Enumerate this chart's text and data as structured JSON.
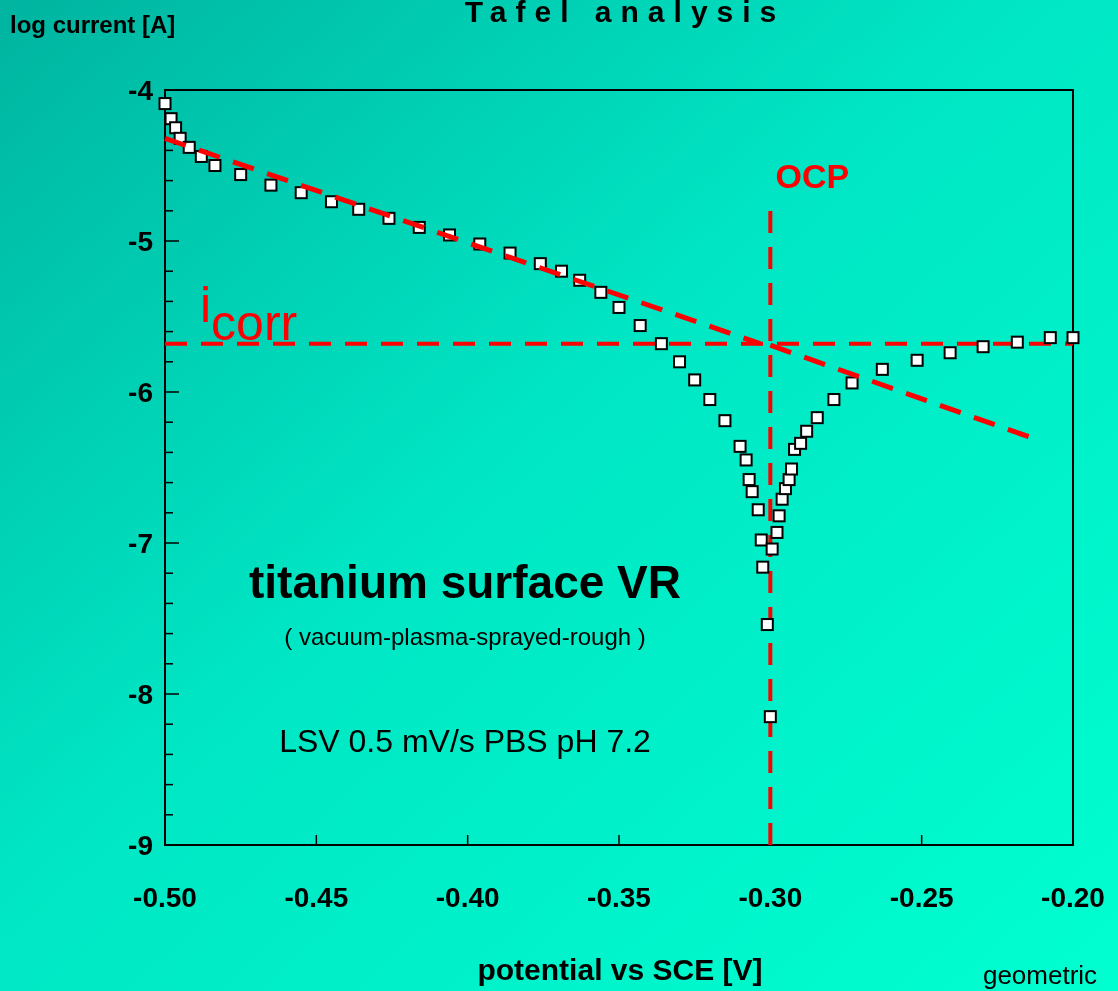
{
  "chart_data": {
    "type": "scatter",
    "title": "Tafel analysis",
    "xlabel": "potential vs SCE [V]",
    "ylabel": "log current [A]",
    "xlim": [
      -0.5,
      -0.2
    ],
    "ylim": [
      -9,
      -4
    ],
    "xticks": [
      {
        "value": -0.5,
        "label": "-0.50"
      },
      {
        "value": -0.45,
        "label": "-0.45"
      },
      {
        "value": -0.4,
        "label": "-0.40"
      },
      {
        "value": -0.35,
        "label": "-0.35"
      },
      {
        "value": -0.3,
        "label": "-0.30"
      },
      {
        "value": -0.25,
        "label": "-0.25"
      },
      {
        "value": -0.2,
        "label": "-0.20"
      }
    ],
    "yticks": [
      -9,
      {
        "value": -8.8,
        "label": null
      },
      {
        "value": -8.6,
        "label": null
      },
      {
        "value": -8.4,
        "label": null
      },
      {
        "value": -8.2,
        "label": null
      },
      -8,
      {
        "value": -7.8,
        "label": null
      },
      {
        "value": -7.6,
        "label": null
      },
      {
        "value": -7.4,
        "label": null
      },
      {
        "value": -7.2,
        "label": null
      },
      -7,
      {
        "value": -6.8,
        "label": null
      },
      {
        "value": -6.6,
        "label": null
      },
      {
        "value": -6.4,
        "label": null
      },
      {
        "value": -6.2,
        "label": null
      },
      -6,
      {
        "value": -5.8,
        "label": null
      },
      {
        "value": -5.6,
        "label": null
      },
      {
        "value": -5.4,
        "label": null
      },
      {
        "value": -5.2,
        "label": null
      },
      -5,
      {
        "value": -4.8,
        "label": null
      },
      {
        "value": -4.6,
        "label": null
      },
      {
        "value": -4.4,
        "label": null
      },
      {
        "value": -4.2,
        "label": null
      },
      -4
    ],
    "grid": false,
    "series": [
      {
        "color": "#ffffff",
        "marker": "square",
        "x": [
          -0.5,
          -0.498,
          -0.4965,
          -0.495,
          -0.492,
          -0.488,
          -0.4835,
          -0.475,
          -0.465,
          -0.455,
          -0.445,
          -0.436,
          -0.426,
          -0.416,
          -0.406,
          -0.396,
          -0.386,
          -0.376,
          -0.369,
          -0.363,
          -0.356,
          -0.35,
          -0.343,
          -0.336,
          -0.33,
          -0.325,
          -0.32,
          -0.315,
          -0.31,
          -0.308,
          -0.307,
          -0.306,
          -0.304,
          -0.303,
          -0.3025,
          -0.301,
          -0.3,
          -0.2994,
          -0.2978,
          -0.2971,
          -0.2961,
          -0.295,
          -0.2938,
          -0.293,
          -0.292,
          -0.29,
          -0.288,
          -0.2845,
          -0.279,
          -0.273,
          -0.263,
          -0.2515,
          -0.2406,
          -0.2297,
          -0.2184,
          -0.2075,
          -0.2
        ],
        "values": [
          -4.09,
          -4.19,
          -4.25,
          -4.32,
          -4.38,
          -4.44,
          -4.5,
          -4.56,
          -4.63,
          -4.68,
          -4.74,
          -4.79,
          -4.85,
          -4.91,
          -4.96,
          -5.02,
          -5.08,
          -5.15,
          -5.2,
          -5.26,
          -5.34,
          -5.44,
          -5.56,
          -5.68,
          -5.8,
          -5.92,
          -6.05,
          -6.19,
          -6.36,
          -6.45,
          -6.58,
          -6.66,
          -6.78,
          -6.98,
          -7.16,
          -7.54,
          -8.15,
          -7.04,
          -6.93,
          -6.82,
          -6.71,
          -6.64,
          -6.58,
          -6.51,
          -6.38,
          -6.34,
          -6.26,
          -6.17,
          -6.05,
          -5.94,
          -5.85,
          -5.79,
          -5.74,
          -5.7,
          -5.67,
          -5.64,
          -5.64
        ]
      },
      {
        "type": "line",
        "color": "#ff0000",
        "line_style": "dashed",
        "marker": "none",
        "x": [
          -0.5,
          -0.3034
        ],
        "values": [
          -4.32,
          -5.68
        ]
      },
      {
        "type": "line",
        "color": "#ff0000",
        "line_style": "dashed",
        "marker": "none",
        "x": [
          -0.3,
          -0.2141
        ],
        "values": [
          -5.69,
          -6.3
        ]
      }
    ],
    "ref_lines": [
      {
        "axis": "y",
        "value": -5.68,
        "label": "i$_{corr}$",
        "color": "#ff0000",
        "line_style": "dashed"
      },
      {
        "axis": "x",
        "value": -0.3,
        "label": "OCP",
        "color": "#ff0000",
        "line_style": "dashed"
      }
    ],
    "annotations": [
      "titanium surface VR",
      "( vacuum-plasma-sprayed-rough )",
      "LSV 0.5 mV/s  PBS pH 7.2",
      "geometric"
    ]
  }
}
